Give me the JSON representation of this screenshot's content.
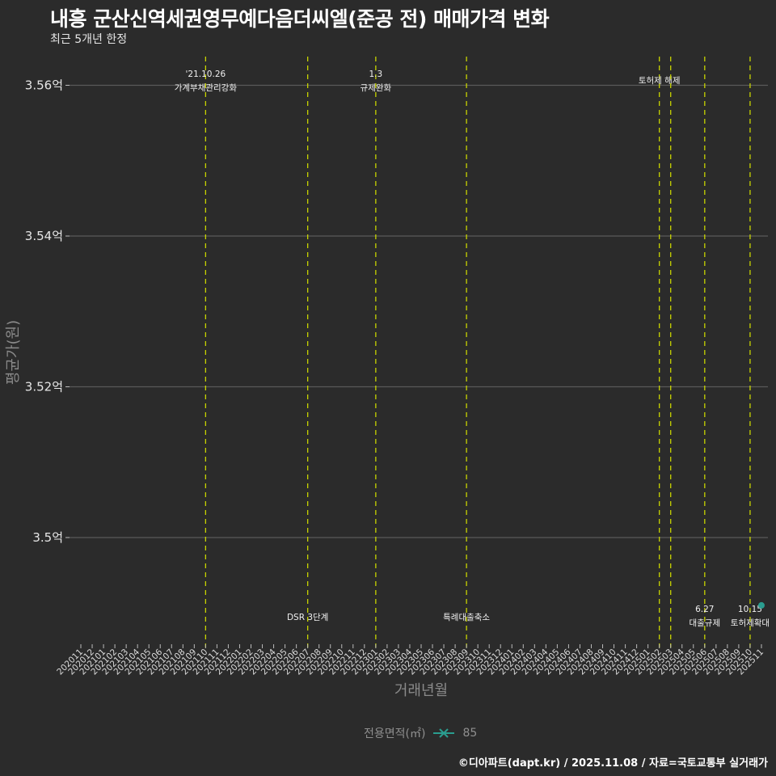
{
  "header": {
    "title": "내흥 군산신역세권영무예다음더씨엘(준공 전) 매매가격 변화",
    "subtitle": "최근 5개년 한정"
  },
  "legend": {
    "title": "전용면적(㎡)",
    "items": [
      {
        "label": "85",
        "color": "#2a9d8f",
        "marker": "x-line"
      }
    ]
  },
  "caption": "©디아파트(dapt.kr) / 2025.11.08 / 자료=국토교통부 실거래가",
  "colors": {
    "background": "#2b2b2b",
    "gridline": "#5a5a5a",
    "event_line": "#c8d400",
    "series_85": "#2a9d8f"
  },
  "chart_data": {
    "type": "scatter",
    "title": "내흥 군산신역세권영무예다음더씨엘(준공 전) 매매가격 변화",
    "subtitle": "최근 5개년 한정",
    "xlabel": "거래년월",
    "ylabel": "평균가(원)",
    "ylim": [
      3.4865,
      3.5635
    ],
    "y_ticks": [
      "3.5억",
      "3.52억",
      "3.54억",
      "3.56억"
    ],
    "y_tick_values": [
      3.5,
      3.52,
      3.54,
      3.56
    ],
    "grid": true,
    "legend_position": "bottom",
    "categories": [
      "202011",
      "202012",
      "202101",
      "202102",
      "202103",
      "202104",
      "202105",
      "202106",
      "202107",
      "202108",
      "202109",
      "202110",
      "202111",
      "202112",
      "202201",
      "202202",
      "202203",
      "202204",
      "202205",
      "202206",
      "202207",
      "202208",
      "202209",
      "202210",
      "202211",
      "202212",
      "202301",
      "202302",
      "202303",
      "202304",
      "202305",
      "202306",
      "202307",
      "202308",
      "202309",
      "202310",
      "202311",
      "202312",
      "202401",
      "202402",
      "202403",
      "202404",
      "202405",
      "202406",
      "202407",
      "202408",
      "202409",
      "202410",
      "202411",
      "202412",
      "202501",
      "202502",
      "202503",
      "202504",
      "202505",
      "202506",
      "202507",
      "202508",
      "202509",
      "202510",
      "202511"
    ],
    "series": [
      {
        "name": "85",
        "points": [
          {
            "x": "202511",
            "y": 3.491
          }
        ]
      }
    ],
    "events": [
      {
        "x": "202110",
        "line1": "'21.10.26",
        "line2": "가계부채관리강화",
        "position": "top"
      },
      {
        "x": "202207",
        "line1": "",
        "line2": "DSR 3단계",
        "position": "bottom"
      },
      {
        "x": "202301",
        "line1": "1.3",
        "line2": "규제완화",
        "position": "top"
      },
      {
        "x": "202309",
        "line1": "",
        "line2": "특례대출축소",
        "position": "bottom"
      },
      {
        "x": "202502",
        "line1": "",
        "line2": "토허제 해제",
        "position": "top"
      },
      {
        "x": "202503",
        "line1": "",
        "line2": "",
        "position": "none"
      },
      {
        "x": "202506",
        "line1": "6.27",
        "line2": "대출규제",
        "position": "bottom"
      },
      {
        "x": "202510",
        "line1": "10.15",
        "line2": "토허제확대",
        "position": "bottom"
      }
    ]
  }
}
